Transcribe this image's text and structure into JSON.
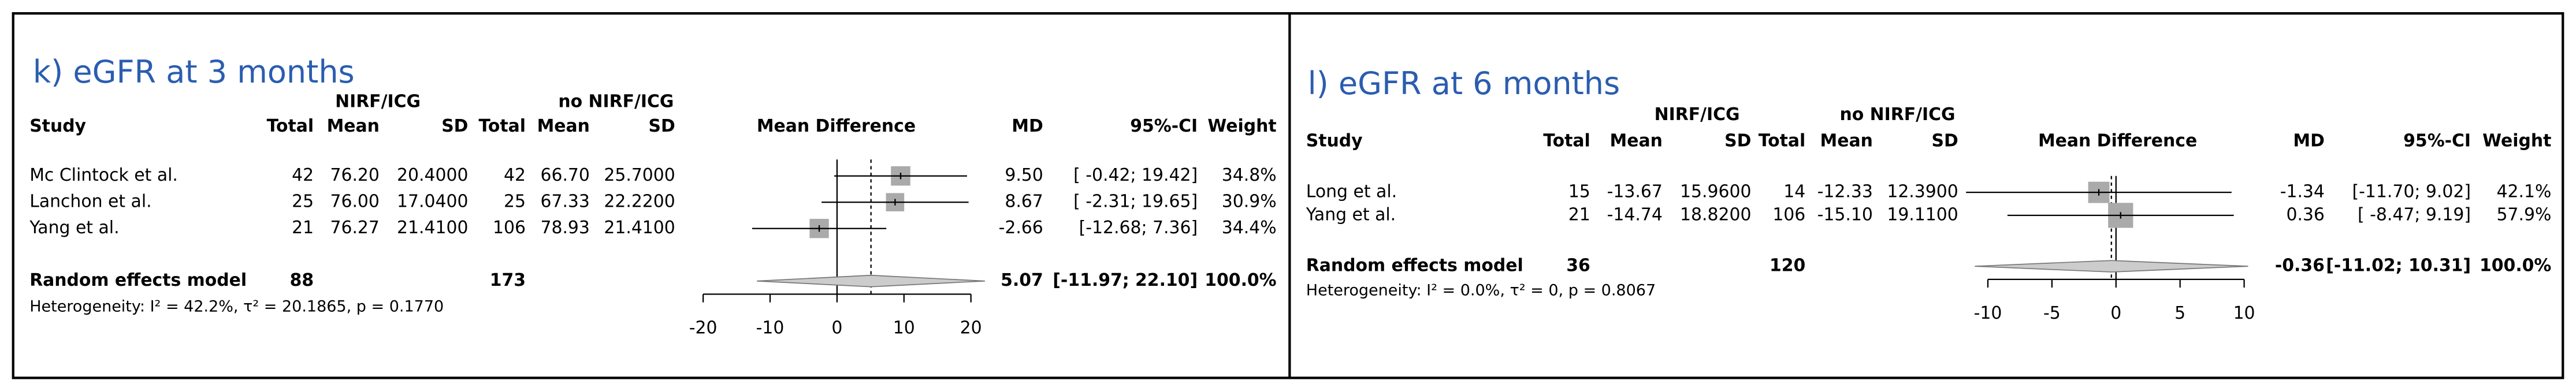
{
  "chart_data": [
    {
      "type": "forest",
      "title": "k) eGFR at 3 months",
      "group_labels": [
        "NIRF/ICG",
        "no NIRF/ICG"
      ],
      "columns": [
        "Study",
        "Total",
        "Mean",
        "SD",
        "Total",
        "Mean",
        "SD",
        "Mean Difference",
        "MD",
        "95%-CI",
        "Weight"
      ],
      "studies": [
        {
          "name": "Mc Clintock et al.",
          "cells": [
            "42",
            "76.20",
            "20.4000",
            "42",
            "66.70",
            "25.7000"
          ],
          "md": 9.5,
          "md_label": "9.50",
          "ci": [
            -0.42,
            19.42
          ],
          "ci_label": "[ -0.42; 19.42]",
          "weight": 34.8,
          "weight_label": "34.8%"
        },
        {
          "name": "Lanchon et al.",
          "cells": [
            "25",
            "76.00",
            "17.0400",
            "25",
            "67.33",
            "22.2200"
          ],
          "md": 8.67,
          "md_label": "8.67",
          "ci": [
            -2.31,
            19.65
          ],
          "ci_label": "[ -2.31; 19.65]",
          "weight": 30.9,
          "weight_label": "30.9%"
        },
        {
          "name": "Yang et al.",
          "cells": [
            "21",
            "76.27",
            "21.4100",
            "106",
            "78.93",
            "21.4100"
          ],
          "md": -2.66,
          "md_label": "-2.66",
          "ci": [
            -12.68,
            7.36
          ],
          "ci_label": "[-12.68; 7.36]",
          "weight": 34.4,
          "weight_label": "34.4%"
        }
      ],
      "pooled": {
        "name": "Random effects model",
        "totals": [
          "88",
          "173"
        ],
        "md": 5.07,
        "md_label": "5.07",
        "ci": [
          -11.97,
          22.1
        ],
        "ci_label": "[-11.97; 22.10]",
        "weight_label": "100.0%"
      },
      "heterogeneity": "Heterogeneity: I² = 42.2%, τ² = 20.1865, p = 0.1770",
      "xlim": [
        -20,
        20
      ],
      "xticks": [
        -20,
        -10,
        0,
        10,
        20
      ]
    },
    {
      "type": "forest",
      "title": "l) eGFR at 6 months",
      "group_labels": [
        "NIRF/ICG",
        "no NIRF/ICG"
      ],
      "columns": [
        "Study",
        "Total",
        "Mean",
        "SD",
        "Total",
        "Mean",
        "SD",
        "Mean Difference",
        "MD",
        "95%-CI",
        "Weight"
      ],
      "studies": [
        {
          "name": "Long et al.",
          "cells": [
            "15",
            "-13.67",
            "15.9600",
            "14",
            "-12.33",
            "12.3900"
          ],
          "md": -1.34,
          "md_label": "-1.34",
          "ci": [
            -11.7,
            9.02
          ],
          "ci_label": "[-11.70; 9.02]",
          "weight": 42.1,
          "weight_label": "42.1%"
        },
        {
          "name": "Yang et al.",
          "cells": [
            "21",
            "-14.74",
            "18.8200",
            "106",
            "-15.10",
            "19.1100"
          ],
          "md": 0.36,
          "md_label": "0.36",
          "ci": [
            -8.47,
            9.19
          ],
          "ci_label": "[ -8.47; 9.19]",
          "weight": 57.9,
          "weight_label": "57.9%"
        }
      ],
      "pooled": {
        "name": "Random effects model",
        "totals": [
          "36",
          "120"
        ],
        "md": -0.36,
        "md_label": "-0.36",
        "ci": [
          -11.02,
          10.31
        ],
        "ci_label": "[-11.02; 10.31]",
        "weight_label": "100.0%"
      },
      "heterogeneity": "Heterogeneity: I² = 0.0%, τ² = 0, p = 0.8067",
      "xlim": [
        -10,
        10
      ],
      "xticks": [
        -10,
        -5,
        0,
        5,
        10
      ]
    }
  ]
}
